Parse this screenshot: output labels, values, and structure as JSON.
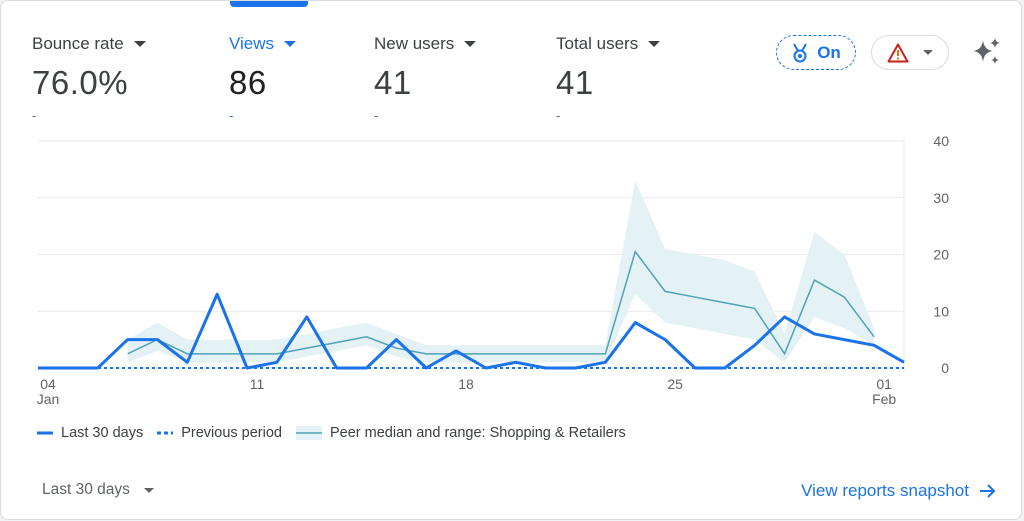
{
  "metrics": [
    {
      "label": "Bounce rate",
      "value": "76.0%",
      "delta": "-"
    },
    {
      "label": "Views",
      "value": "86",
      "delta": "-"
    },
    {
      "label": "New users",
      "value": "41",
      "delta": "-"
    },
    {
      "label": "Total users",
      "value": "41",
      "delta": "-"
    }
  ],
  "active_metric": "Views",
  "benchmark_chip": {
    "label": "On",
    "icon": "medal-icon"
  },
  "warning_chip": {
    "icon": "warning-icon"
  },
  "insights_icon": "sparkle-icon",
  "legend": {
    "current": "Last 30 days",
    "previous": "Previous period",
    "peer": "Peer median and range: Shopping & Retailers"
  },
  "date_range": "Last 30 days",
  "snapshot_link": "View reports snapshot",
  "colors": {
    "accent": "#1a73e8",
    "peer": "#4fa3b4",
    "peer_band": "#e4f1f5"
  },
  "chart_data": {
    "type": "line",
    "x_tick_labels": [
      {
        "day": 0,
        "label": "04",
        "sub": "Jan"
      },
      {
        "day": 7,
        "label": "11",
        "sub": ""
      },
      {
        "day": 14,
        "label": "18",
        "sub": ""
      },
      {
        "day": 21,
        "label": "25",
        "sub": ""
      },
      {
        "day": 28,
        "label": "01",
        "sub": "Feb"
      }
    ],
    "x_range": [
      0,
      29
    ],
    "ylim": [
      0,
      40
    ],
    "y_ticks": [
      0,
      10,
      20,
      30,
      40
    ],
    "grid": true,
    "y_axis_side": "right",
    "series": [
      {
        "name": "Last 30 days",
        "style": "solid",
        "x": [
          0,
          1,
          2,
          3,
          4,
          5,
          6,
          7,
          8,
          9,
          10,
          11,
          12,
          13,
          14,
          15,
          16,
          17,
          18,
          19,
          20,
          21,
          22,
          23,
          24,
          25,
          26,
          27,
          28,
          29
        ],
        "y": [
          0,
          0,
          0,
          5,
          5,
          1,
          13,
          0,
          1,
          9,
          0,
          0,
          5,
          0,
          3,
          0,
          1,
          0,
          0,
          1,
          8,
          5,
          0,
          0,
          4,
          9,
          6,
          5,
          4,
          1
        ]
      },
      {
        "name": "Previous period",
        "style": "dashed",
        "x": [
          0,
          29
        ],
        "y": [
          0,
          0
        ]
      },
      {
        "name": "Peer median and range: Shopping & Retailers",
        "style": "median-band",
        "x": [
          3,
          4,
          5,
          6,
          7,
          8,
          9,
          10,
          11,
          12,
          13,
          14,
          15,
          16,
          17,
          18,
          19,
          20,
          21,
          22,
          23,
          24,
          25,
          26,
          27,
          28
        ],
        "y": [
          2.5,
          5,
          2.5,
          2.5,
          2.5,
          2.5,
          3.5,
          4.5,
          5.5,
          3.5,
          2.5,
          2.5,
          2.5,
          2.5,
          2.5,
          2.5,
          2.5,
          20.5,
          13.5,
          12.5,
          11.5,
          10.5,
          2.5,
          15.5,
          12.5,
          5.5
        ],
        "range_low": [
          1,
          3,
          1,
          1,
          1,
          1,
          2,
          3,
          4,
          2,
          1,
          1,
          1,
          1,
          1,
          1,
          1,
          13,
          8,
          7,
          6,
          5,
          1,
          9,
          7,
          4
        ],
        "range_high": [
          5,
          8,
          5,
          5,
          5,
          5,
          6,
          7,
          8,
          6,
          4,
          4,
          4,
          4,
          4,
          4,
          4,
          33,
          21,
          20,
          19,
          17,
          6,
          24,
          20,
          7
        ]
      }
    ]
  }
}
